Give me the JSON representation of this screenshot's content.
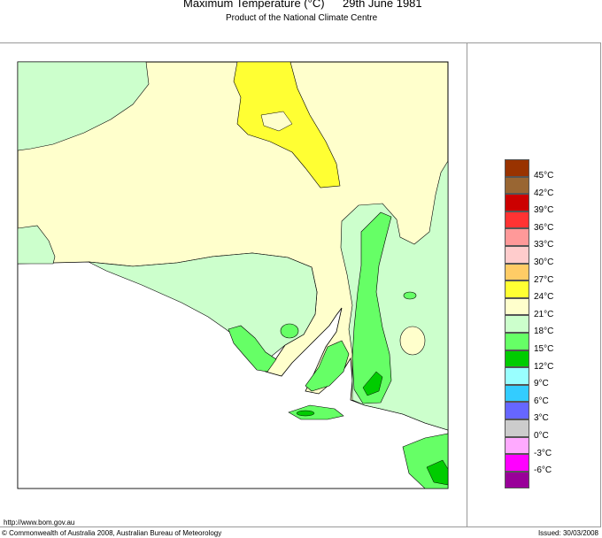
{
  "header": {
    "title": "Maximum Temperature (°C)",
    "date": "29th June 1981",
    "subtitle": "Product of the National Climate Centre"
  },
  "legend": {
    "swatches": [
      {
        "color": "#993300",
        "label": "45°C"
      },
      {
        "color": "#996633",
        "label": "42°C"
      },
      {
        "color": "#cc0000",
        "label": "39°C"
      },
      {
        "color": "#ff3333",
        "label": "36°C"
      },
      {
        "color": "#ff9999",
        "label": "33°C"
      },
      {
        "color": "#ffcccc",
        "label": "30°C"
      },
      {
        "color": "#ffcc66",
        "label": "27°C"
      },
      {
        "color": "#ffff33",
        "label": "24°C"
      },
      {
        "color": "#ffffcc",
        "label": "21°C"
      },
      {
        "color": "#ccffcc",
        "label": "18°C"
      },
      {
        "color": "#66ff66",
        "label": "15°C"
      },
      {
        "color": "#00cc00",
        "label": "12°C"
      },
      {
        "color": "#99ffff",
        "label": "9°C"
      },
      {
        "color": "#33ccff",
        "label": "6°C"
      },
      {
        "color": "#6666ff",
        "label": "3°C"
      },
      {
        "color": "#cccccc",
        "label": "0°C"
      },
      {
        "color": "#ffaaff",
        "label": "-3°C"
      },
      {
        "color": "#ff00ff",
        "label": "-6°C"
      },
      {
        "color": "#990099",
        "label": ""
      }
    ]
  },
  "footer": {
    "url": "http://www.bom.gov.au",
    "copyright": "© Commonwealth of Australia 2008, Australian Bureau of Meteorology",
    "issued": "Issued: 30/03/2008"
  }
}
